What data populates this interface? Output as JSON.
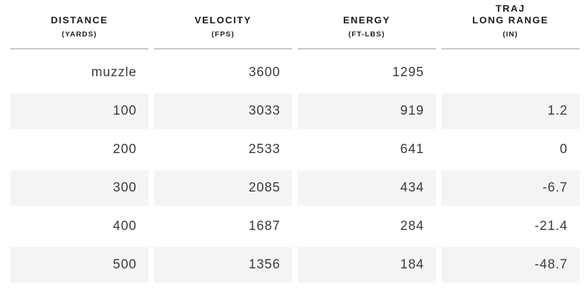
{
  "chart_data": {
    "type": "table",
    "columns": [
      {
        "title": "DISTANCE",
        "unit": "(YARDS)"
      },
      {
        "title": "VELOCITY",
        "unit": "(FPS)"
      },
      {
        "title": "ENERGY",
        "unit": "(FT-LBS)"
      },
      {
        "pre_title": "TRAJ",
        "title": "LONG RANGE",
        "unit": "(IN)"
      }
    ],
    "rows": [
      [
        "muzzle",
        "3600",
        "1295",
        ""
      ],
      [
        "100",
        "3033",
        "919",
        "1.2"
      ],
      [
        "200",
        "2533",
        "641",
        "0"
      ],
      [
        "300",
        "2085",
        "434",
        "-6.7"
      ],
      [
        "400",
        "1687",
        "284",
        "-21.4"
      ],
      [
        "500",
        "1356",
        "184",
        "-48.7"
      ]
    ]
  },
  "colors": {
    "row_stripe": "#f4f4f4",
    "header_rule": "#c8c8c8",
    "header_text": "#1b1b1b",
    "body_text": "#3a3a3a",
    "background": "#ffffff"
  }
}
